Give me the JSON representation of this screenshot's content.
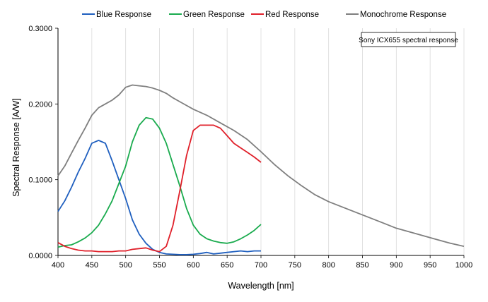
{
  "chart_data": {
    "type": "line",
    "title": "",
    "xlabel": "Wavelength [nm]",
    "ylabel": "Spectral Response [A/W]",
    "xlim": [
      400,
      1000
    ],
    "ylim": [
      0,
      0.3
    ],
    "x_ticks": [
      "400",
      "450",
      "500",
      "550",
      "600",
      "650",
      "700",
      "750",
      "800",
      "850",
      "900",
      "950",
      "1000"
    ],
    "y_ticks": [
      "0.0000",
      "0.1000",
      "0.2000",
      "0.3000"
    ],
    "grid": "vertical",
    "legend_position": "top",
    "annotation": "Sony ICX655 spectral response",
    "series": [
      {
        "name": "Blue Response",
        "color": "#1f5fbf",
        "points": [
          [
            400,
            0.058
          ],
          [
            410,
            0.072
          ],
          [
            420,
            0.09
          ],
          [
            430,
            0.11
          ],
          [
            440,
            0.128
          ],
          [
            450,
            0.148
          ],
          [
            460,
            0.152
          ],
          [
            465,
            0.15
          ],
          [
            470,
            0.148
          ],
          [
            480,
            0.125
          ],
          [
            490,
            0.1
          ],
          [
            500,
            0.075
          ],
          [
            510,
            0.047
          ],
          [
            520,
            0.028
          ],
          [
            530,
            0.016
          ],
          [
            540,
            0.008
          ],
          [
            550,
            0.004
          ],
          [
            560,
            0.002
          ],
          [
            570,
            0.0015
          ],
          [
            580,
            0.001
          ],
          [
            590,
            0.001
          ],
          [
            600,
            0.0015
          ],
          [
            610,
            0.0025
          ],
          [
            620,
            0.004
          ],
          [
            630,
            0.002
          ],
          [
            640,
            0.003
          ],
          [
            650,
            0.004
          ],
          [
            660,
            0.005
          ],
          [
            670,
            0.006
          ],
          [
            680,
            0.005
          ],
          [
            690,
            0.006
          ],
          [
            700,
            0.006
          ]
        ]
      },
      {
        "name": "Green Response",
        "color": "#1aab4e",
        "points": [
          [
            400,
            0.011
          ],
          [
            410,
            0.013
          ],
          [
            420,
            0.014
          ],
          [
            430,
            0.018
          ],
          [
            440,
            0.023
          ],
          [
            450,
            0.03
          ],
          [
            460,
            0.04
          ],
          [
            470,
            0.055
          ],
          [
            480,
            0.072
          ],
          [
            490,
            0.095
          ],
          [
            500,
            0.118
          ],
          [
            510,
            0.15
          ],
          [
            520,
            0.172
          ],
          [
            530,
            0.182
          ],
          [
            540,
            0.18
          ],
          [
            550,
            0.168
          ],
          [
            560,
            0.148
          ],
          [
            570,
            0.12
          ],
          [
            580,
            0.092
          ],
          [
            590,
            0.062
          ],
          [
            600,
            0.04
          ],
          [
            610,
            0.028
          ],
          [
            620,
            0.022
          ],
          [
            630,
            0.019
          ],
          [
            640,
            0.017
          ],
          [
            650,
            0.016
          ],
          [
            660,
            0.018
          ],
          [
            670,
            0.022
          ],
          [
            680,
            0.027
          ],
          [
            690,
            0.033
          ],
          [
            700,
            0.041
          ]
        ]
      },
      {
        "name": "Red Response",
        "color": "#e0202a",
        "points": [
          [
            400,
            0.017
          ],
          [
            410,
            0.012
          ],
          [
            420,
            0.009
          ],
          [
            430,
            0.007
          ],
          [
            440,
            0.006
          ],
          [
            450,
            0.006
          ],
          [
            460,
            0.005
          ],
          [
            470,
            0.005
          ],
          [
            480,
            0.005
          ],
          [
            490,
            0.006
          ],
          [
            500,
            0.006
          ],
          [
            510,
            0.008
          ],
          [
            520,
            0.009
          ],
          [
            530,
            0.01
          ],
          [
            540,
            0.007
          ],
          [
            550,
            0.005
          ],
          [
            560,
            0.012
          ],
          [
            570,
            0.04
          ],
          [
            580,
            0.085
          ],
          [
            590,
            0.132
          ],
          [
            600,
            0.165
          ],
          [
            610,
            0.172
          ],
          [
            620,
            0.172
          ],
          [
            630,
            0.172
          ],
          [
            640,
            0.168
          ],
          [
            650,
            0.158
          ],
          [
            660,
            0.148
          ],
          [
            670,
            0.142
          ],
          [
            680,
            0.136
          ],
          [
            690,
            0.13
          ],
          [
            700,
            0.123
          ]
        ]
      },
      {
        "name": "Monochrome Response",
        "color": "#7f7f7f",
        "points": [
          [
            400,
            0.105
          ],
          [
            410,
            0.118
          ],
          [
            420,
            0.135
          ],
          [
            430,
            0.152
          ],
          [
            440,
            0.168
          ],
          [
            450,
            0.185
          ],
          [
            460,
            0.195
          ],
          [
            470,
            0.2
          ],
          [
            480,
            0.205
          ],
          [
            490,
            0.212
          ],
          [
            500,
            0.222
          ],
          [
            510,
            0.225
          ],
          [
            520,
            0.224
          ],
          [
            530,
            0.223
          ],
          [
            540,
            0.221
          ],
          [
            550,
            0.218
          ],
          [
            560,
            0.214
          ],
          [
            570,
            0.208
          ],
          [
            580,
            0.203
          ],
          [
            590,
            0.198
          ],
          [
            600,
            0.193
          ],
          [
            620,
            0.185
          ],
          [
            640,
            0.175
          ],
          [
            660,
            0.165
          ],
          [
            680,
            0.153
          ],
          [
            700,
            0.137
          ],
          [
            720,
            0.12
          ],
          [
            740,
            0.105
          ],
          [
            760,
            0.092
          ],
          [
            780,
            0.08
          ],
          [
            800,
            0.071
          ],
          [
            820,
            0.064
          ],
          [
            840,
            0.057
          ],
          [
            860,
            0.05
          ],
          [
            880,
            0.043
          ],
          [
            900,
            0.036
          ],
          [
            920,
            0.031
          ],
          [
            940,
            0.026
          ],
          [
            960,
            0.021
          ],
          [
            980,
            0.016
          ],
          [
            1000,
            0.012
          ]
        ]
      }
    ]
  }
}
